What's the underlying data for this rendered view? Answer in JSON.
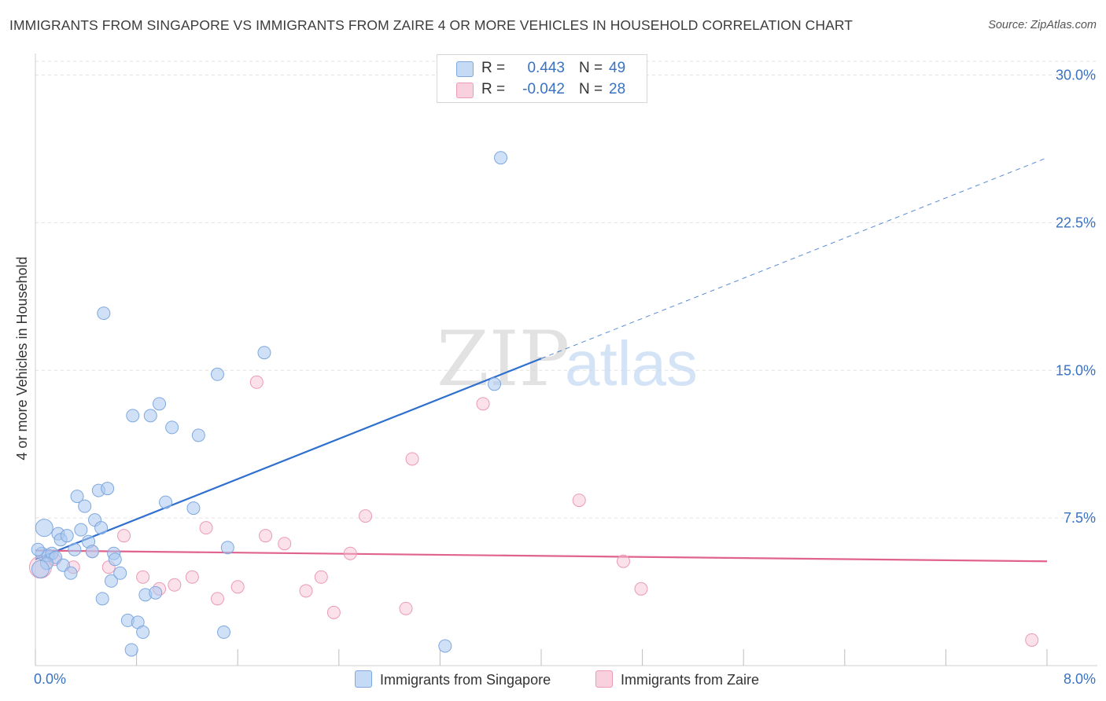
{
  "title": "IMMIGRANTS FROM SINGAPORE VS IMMIGRANTS FROM ZAIRE 4 OR MORE VEHICLES IN HOUSEHOLD CORRELATION CHART",
  "source": "Source: ZipAtlas.com",
  "watermark": {
    "zip": "ZIP",
    "atlas": "atlas"
  },
  "stats": {
    "row1": {
      "r_label": "R =",
      "r_value": "0.443",
      "n_label": "N =",
      "n_value": "49"
    },
    "row2": {
      "r_label": "R =",
      "r_value": "-0.042",
      "n_label": "N =",
      "n_value": "28"
    }
  },
  "legend": {
    "singapore": "Immigrants from Singapore",
    "zaire": "Immigrants from Zaire"
  },
  "colors": {
    "singapore_fill": "#a9c8f0",
    "singapore_stroke": "#7ea8de",
    "singapore_line": "#2f6fce",
    "zaire_fill": "#f6bfd0",
    "zaire_stroke": "#ec9ab5",
    "zaire_line": "#e0628f",
    "tick_label": "#3a72c2",
    "grid": "#e2e2e2"
  },
  "chart_data": {
    "type": "scatter",
    "title": "IMMIGRANTS FROM SINGAPORE VS IMMIGRANTS FROM ZAIRE 4 OR MORE VEHICLES IN HOUSEHOLD CORRELATION CHART",
    "xlabel": "",
    "ylabel": "4 or more Vehicles in Household",
    "xlim": [
      0,
      8.0
    ],
    "ylim": [
      0,
      30.9
    ],
    "x_tick_labels": [
      {
        "value": 0,
        "label": "0.0%"
      },
      {
        "value": 8.0,
        "label": "8.0%"
      }
    ],
    "y_tick_labels": [
      {
        "value": 7.5,
        "label": "7.5%"
      },
      {
        "value": 15.0,
        "label": "15.0%"
      },
      {
        "value": 22.5,
        "label": "22.5%"
      },
      {
        "value": 30.0,
        "label": "30.0%"
      }
    ],
    "grid": true,
    "series": [
      {
        "name": "Immigrants from Singapore",
        "r": 0.443,
        "n": 49,
        "trend": {
          "x0": 0.0,
          "y0": 5.4,
          "x1": 4.0,
          "y1": 15.6,
          "dashed_to_x": 8.0,
          "dashed_to_y": 25.8
        },
        "points": [
          {
            "x": 0.05,
            "y": 5.7
          },
          {
            "x": 0.07,
            "y": 7.0
          },
          {
            "x": 0.1,
            "y": 5.6
          },
          {
            "x": 0.13,
            "y": 5.7
          },
          {
            "x": 0.16,
            "y": 5.5
          },
          {
            "x": 0.18,
            "y": 6.7
          },
          {
            "x": 0.2,
            "y": 6.4
          },
          {
            "x": 0.22,
            "y": 5.1
          },
          {
            "x": 0.25,
            "y": 6.6
          },
          {
            "x": 0.28,
            "y": 4.7
          },
          {
            "x": 0.31,
            "y": 5.9
          },
          {
            "x": 0.33,
            "y": 8.6
          },
          {
            "x": 0.36,
            "y": 6.9
          },
          {
            "x": 0.39,
            "y": 8.1
          },
          {
            "x": 0.42,
            "y": 6.3
          },
          {
            "x": 0.45,
            "y": 5.8
          },
          {
            "x": 0.47,
            "y": 7.4
          },
          {
            "x": 0.5,
            "y": 8.9
          },
          {
            "x": 0.52,
            "y": 7.0
          },
          {
            "x": 0.53,
            "y": 3.4
          },
          {
            "x": 0.54,
            "y": 17.9
          },
          {
            "x": 0.57,
            "y": 9.0
          },
          {
            "x": 0.6,
            "y": 4.3
          },
          {
            "x": 0.62,
            "y": 5.7
          },
          {
            "x": 0.63,
            "y": 5.4
          },
          {
            "x": 0.67,
            "y": 4.7
          },
          {
            "x": 0.73,
            "y": 2.3
          },
          {
            "x": 0.76,
            "y": 0.8
          },
          {
            "x": 0.77,
            "y": 12.7
          },
          {
            "x": 0.81,
            "y": 2.2
          },
          {
            "x": 0.85,
            "y": 1.7
          },
          {
            "x": 0.87,
            "y": 3.6
          },
          {
            "x": 0.91,
            "y": 12.7
          },
          {
            "x": 0.95,
            "y": 3.7
          },
          {
            "x": 0.98,
            "y": 13.3
          },
          {
            "x": 1.03,
            "y": 8.3
          },
          {
            "x": 1.08,
            "y": 12.1
          },
          {
            "x": 1.25,
            "y": 8.0
          },
          {
            "x": 1.29,
            "y": 11.7
          },
          {
            "x": 1.44,
            "y": 14.8
          },
          {
            "x": 1.49,
            "y": 1.7
          },
          {
            "x": 1.52,
            "y": 6.0
          },
          {
            "x": 1.81,
            "y": 15.9
          },
          {
            "x": 3.24,
            "y": 1.0
          },
          {
            "x": 3.63,
            "y": 14.3
          },
          {
            "x": 3.68,
            "y": 25.8
          },
          {
            "x": 0.02,
            "y": 5.9
          },
          {
            "x": 0.09,
            "y": 5.2
          },
          {
            "x": 0.04,
            "y": 4.9
          }
        ]
      },
      {
        "name": "Immigrants from Zaire",
        "r": -0.042,
        "n": 28,
        "trend": {
          "x0": 0.0,
          "y0": 5.85,
          "x1": 8.0,
          "y1": 5.3
        },
        "points": [
          {
            "x": 0.04,
            "y": 5.0
          },
          {
            "x": 0.3,
            "y": 5.0
          },
          {
            "x": 0.45,
            "y": 5.8
          },
          {
            "x": 0.58,
            "y": 5.0
          },
          {
            "x": 0.7,
            "y": 6.6
          },
          {
            "x": 0.85,
            "y": 4.5
          },
          {
            "x": 0.98,
            "y": 3.9
          },
          {
            "x": 1.1,
            "y": 4.1
          },
          {
            "x": 1.24,
            "y": 4.5
          },
          {
            "x": 1.35,
            "y": 7.0
          },
          {
            "x": 1.44,
            "y": 3.4
          },
          {
            "x": 1.6,
            "y": 4.0
          },
          {
            "x": 1.75,
            "y": 14.4
          },
          {
            "x": 1.82,
            "y": 6.6
          },
          {
            "x": 1.97,
            "y": 6.2
          },
          {
            "x": 2.14,
            "y": 3.8
          },
          {
            "x": 2.26,
            "y": 4.5
          },
          {
            "x": 2.36,
            "y": 2.7
          },
          {
            "x": 2.49,
            "y": 5.7
          },
          {
            "x": 2.61,
            "y": 7.6
          },
          {
            "x": 2.93,
            "y": 2.9
          },
          {
            "x": 2.98,
            "y": 10.5
          },
          {
            "x": 3.54,
            "y": 13.3
          },
          {
            "x": 4.3,
            "y": 8.4
          },
          {
            "x": 4.65,
            "y": 5.3
          },
          {
            "x": 4.79,
            "y": 3.9
          },
          {
            "x": 7.88,
            "y": 1.3
          },
          {
            "x": 0.15,
            "y": 5.4
          }
        ]
      }
    ],
    "legend_position": "bottom-center"
  }
}
